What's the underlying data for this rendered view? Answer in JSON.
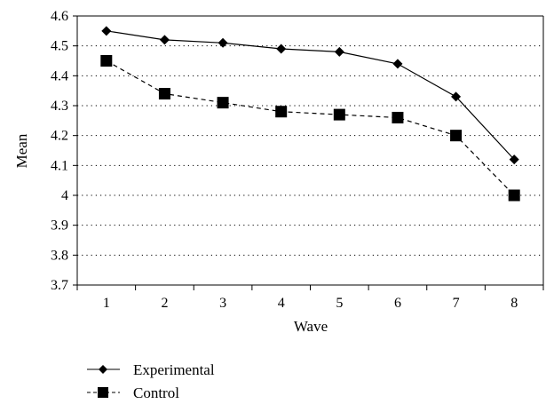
{
  "chart_data": {
    "type": "line",
    "xlabel": "Wave",
    "ylabel": "Mean",
    "categories": [
      "1",
      "2",
      "3",
      "4",
      "5",
      "6",
      "7",
      "8"
    ],
    "ylim": [
      3.7,
      4.6
    ],
    "yticks": [
      "3.7",
      "3.8",
      "3.9",
      "4",
      "4.1",
      "4.2",
      "4.3",
      "4.4",
      "4.5",
      "4.6"
    ],
    "grid": "horizontal dotted",
    "legend_placement": "below",
    "series": [
      {
        "name": "Experimental",
        "values": [
          4.55,
          4.52,
          4.51,
          4.49,
          4.48,
          4.44,
          4.33,
          4.12
        ],
        "marker": "diamond",
        "line": "solid",
        "color": "#000000"
      },
      {
        "name": "Control",
        "values": [
          4.45,
          4.34,
          4.31,
          4.28,
          4.27,
          4.26,
          4.2,
          4.0
        ],
        "marker": "square",
        "line": "dashed",
        "color": "#000000"
      }
    ]
  }
}
